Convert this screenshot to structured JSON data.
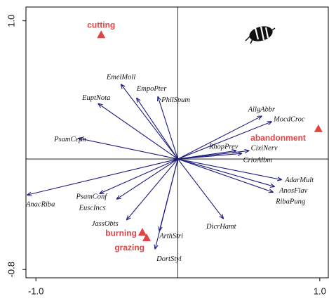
{
  "chart_data": {
    "type": "biplot",
    "xlim": [
      -1.07,
      1.06
    ],
    "ylim": [
      -0.86,
      1.1
    ],
    "xticks": [
      {
        "value": -1.0,
        "label": "-1.0"
      },
      {
        "value": 1.0,
        "label": "1.0"
      }
    ],
    "yticks": [
      {
        "value": 1.0,
        "label": "1.0"
      },
      {
        "value": -0.8,
        "label": "-0.8"
      }
    ],
    "arrow_color": "#1c1c7c",
    "point_color": "#e04444",
    "arrows": [
      {
        "name": "EmelMoll",
        "x": -0.4,
        "y": 0.54
      },
      {
        "name": "EmpoPter",
        "x": -0.29,
        "y": 0.44
      },
      {
        "name": "PhilSpum",
        "x": -0.14,
        "y": 0.45
      },
      {
        "name": "EuptNota",
        "x": -0.56,
        "y": 0.4
      },
      {
        "name": "PsamCeph",
        "x": -0.7,
        "y": 0.15
      },
      {
        "name": "AllgAbbr",
        "x": 0.59,
        "y": 0.31
      },
      {
        "name": "MocdCroc",
        "x": 0.66,
        "y": 0.27
      },
      {
        "name": "RhopPrev",
        "x": 0.41,
        "y": 0.06
      },
      {
        "name": "CixiNerv",
        "x": 0.5,
        "y": 0.06
      },
      {
        "name": "CrioAlbm",
        "x": 0.45,
        "y": 0.04
      },
      {
        "name": "AdarMult",
        "x": 0.73,
        "y": -0.15
      },
      {
        "name": "AnosFlav",
        "x": 0.68,
        "y": -0.2
      },
      {
        "name": "RibaPung",
        "x": 0.67,
        "y": -0.24
      },
      {
        "name": "AnacRiba",
        "x": -1.06,
        "y": -0.26
      },
      {
        "name": "PsamConf",
        "x": -0.55,
        "y": -0.25
      },
      {
        "name": "EuscIncs",
        "x": -0.43,
        "y": -0.29
      },
      {
        "name": "JassObts",
        "x": -0.36,
        "y": -0.44
      },
      {
        "name": "DicrHamt",
        "x": 0.32,
        "y": -0.43
      },
      {
        "name": "ArthStri",
        "x": -0.13,
        "y": -0.52
      },
      {
        "name": "DortStyl",
        "x": -0.16,
        "y": -0.65
      }
    ],
    "points": [
      {
        "name": "cutting",
        "x": -0.54,
        "y": 0.9
      },
      {
        "name": "abandonment",
        "x": 0.99,
        "y": 0.22
      },
      {
        "name": "burning",
        "x": -0.25,
        "y": -0.53
      },
      {
        "name": "grazing",
        "x": -0.22,
        "y": -0.57
      }
    ]
  }
}
